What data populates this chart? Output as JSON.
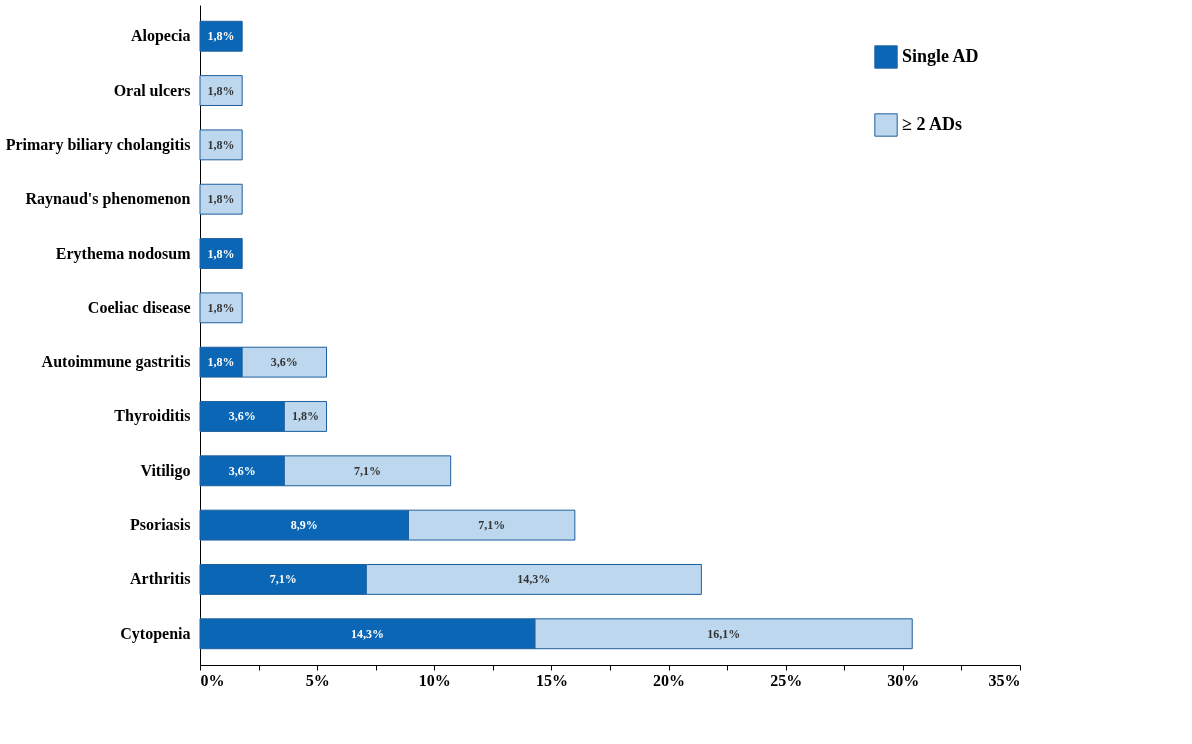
{
  "chart_data": {
    "type": "bar",
    "orientation": "horizontal",
    "stacked": true,
    "categories": [
      "Alopecia",
      "Oral ulcers",
      "Primary biliary cholangitis",
      "Raynaud's phenomenon",
      "Erythema nodosum",
      "Coeliac disease",
      "Autoimmune gastritis",
      "Thyroiditis",
      "Vitiligo",
      "Psoriasis",
      "Arthritis",
      "Cytopenia"
    ],
    "series": [
      {
        "name": "Single AD",
        "color": "#0b67b5",
        "values": [
          1.8,
          null,
          null,
          null,
          1.8,
          null,
          1.8,
          3.6,
          3.6,
          8.9,
          7.1,
          14.3
        ],
        "value_labels": [
          "1,8%",
          null,
          null,
          null,
          "1,8%",
          null,
          "1,8%",
          "3,6%",
          "3,6%",
          "8,9%",
          "7,1%",
          "14,3%"
        ]
      },
      {
        "name": "≥ 2 ADs",
        "color": "#bdd7ee",
        "values": [
          null,
          1.8,
          1.8,
          1.8,
          null,
          1.8,
          3.6,
          1.8,
          7.1,
          7.1,
          14.3,
          16.1
        ],
        "value_labels": [
          null,
          "1,8%",
          "1,8%",
          "1,8%",
          null,
          "1,8%",
          "3,6%",
          "1,8%",
          "7,1%",
          "7,1%",
          "14,3%",
          "16,1%"
        ]
      }
    ],
    "xlim": [
      0,
      35
    ],
    "xticks": [
      {
        "value": 0,
        "label": "0%"
      },
      {
        "value": 2.5,
        "label": null
      },
      {
        "value": 5,
        "label": "5%"
      },
      {
        "value": 7.5,
        "label": null
      },
      {
        "value": 10,
        "label": "10%"
      },
      {
        "value": 12.5,
        "label": null
      },
      {
        "value": 15,
        "label": "15%"
      },
      {
        "value": 17.5,
        "label": null
      },
      {
        "value": 20,
        "label": "20%"
      },
      {
        "value": 22.5,
        "label": null
      },
      {
        "value": 25,
        "label": "25%"
      },
      {
        "value": 27.5,
        "label": null
      },
      {
        "value": 30,
        "label": "30%"
      },
      {
        "value": 32.5,
        "label": null
      },
      {
        "value": 35,
        "label": "35%"
      }
    ],
    "legend": "top right",
    "grid": false
  }
}
